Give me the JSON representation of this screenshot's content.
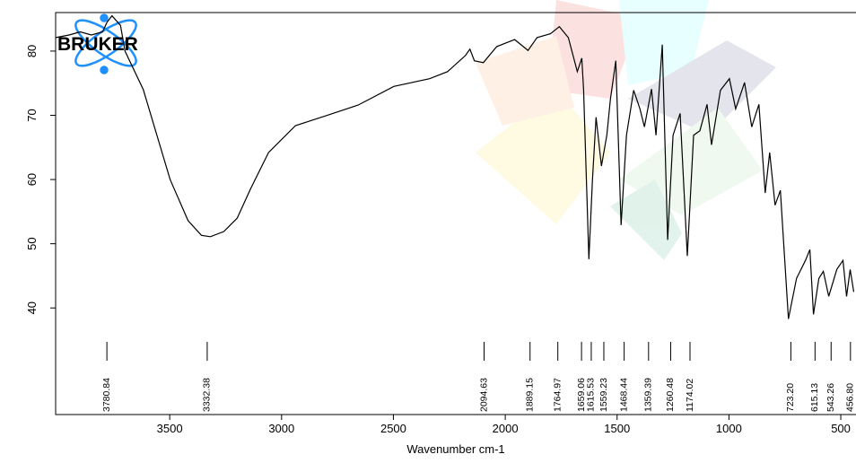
{
  "chart_data": {
    "type": "line",
    "logo": "BRUKER",
    "xlabel": "Wavenumber cm-1",
    "xlim": [
      4010,
      432
    ],
    "ylim": [
      23.4,
      86
    ],
    "xticks": [
      3500,
      3000,
      2500,
      2000,
      1500,
      1000,
      500
    ],
    "yticks": [
      40,
      50,
      60,
      70,
      80
    ],
    "color": "#000000",
    "x": [
      4010,
      3950,
      3900,
      3850,
      3800,
      3780,
      3758,
      3720,
      3700,
      3618,
      3498,
      3418,
      3358,
      3318,
      3258,
      3198,
      3138,
      3058,
      2938,
      2778,
      2658,
      2498,
      2338,
      2258,
      2178,
      2158,
      2138,
      2098,
      2038,
      1958,
      1898,
      1858,
      1798,
      1758,
      1718,
      1678,
      1658,
      1650,
      1626,
      1610,
      1594,
      1570,
      1546,
      1530,
      1506,
      1482,
      1458,
      1426,
      1398,
      1378,
      1346,
      1326,
      1298,
      1274,
      1250,
      1218,
      1186,
      1158,
      1130,
      1098,
      1078,
      1038,
      998,
      970,
      930,
      898,
      866,
      838,
      818,
      794,
      770,
      734,
      698,
      658,
      638,
      622,
      598,
      578,
      554,
      518,
      490,
      474,
      458,
      442
    ],
    "y": [
      82.1,
      82.5,
      83,
      82.5,
      83,
      84.5,
      85.5,
      84,
      80,
      74,
      60,
      53.6,
      51.3,
      51.1,
      51.9,
      54,
      58.6,
      64.2,
      68.4,
      70.2,
      71.6,
      74.5,
      75.7,
      76.8,
      79.3,
      80.3,
      78.5,
      78.2,
      80.7,
      81.8,
      80.1,
      82.1,
      82.7,
      83.8,
      82.1,
      76.8,
      78.9,
      74,
      47.6,
      60,
      69.7,
      62.1,
      66.9,
      72.5,
      78.5,
      52.9,
      66.9,
      73.9,
      71,
      68.2,
      74.1,
      66.9,
      81,
      50.6,
      66.9,
      70.3,
      48.1,
      66.9,
      67.6,
      71.7,
      65.4,
      73.9,
      75.7,
      71,
      75.1,
      68.2,
      71.7,
      57.9,
      64.2,
      56,
      58.3,
      38.3,
      44.6,
      47.4,
      49.1,
      39,
      44.6,
      45.7,
      41.8,
      46,
      47.4,
      41.8,
      46,
      42.5
    ],
    "peaks": [
      3780.84,
      3332.38,
      2094.63,
      1889.15,
      1764.97,
      1659.06,
      1615.53,
      1559.23,
      1468.44,
      1359.39,
      1260.48,
      1174.02,
      {
        "value": 723.2,
        "label": "723.20"
      },
      615.13,
      543.26,
      {
        "value": 456.8,
        "label": "456.80"
      }
    ]
  }
}
